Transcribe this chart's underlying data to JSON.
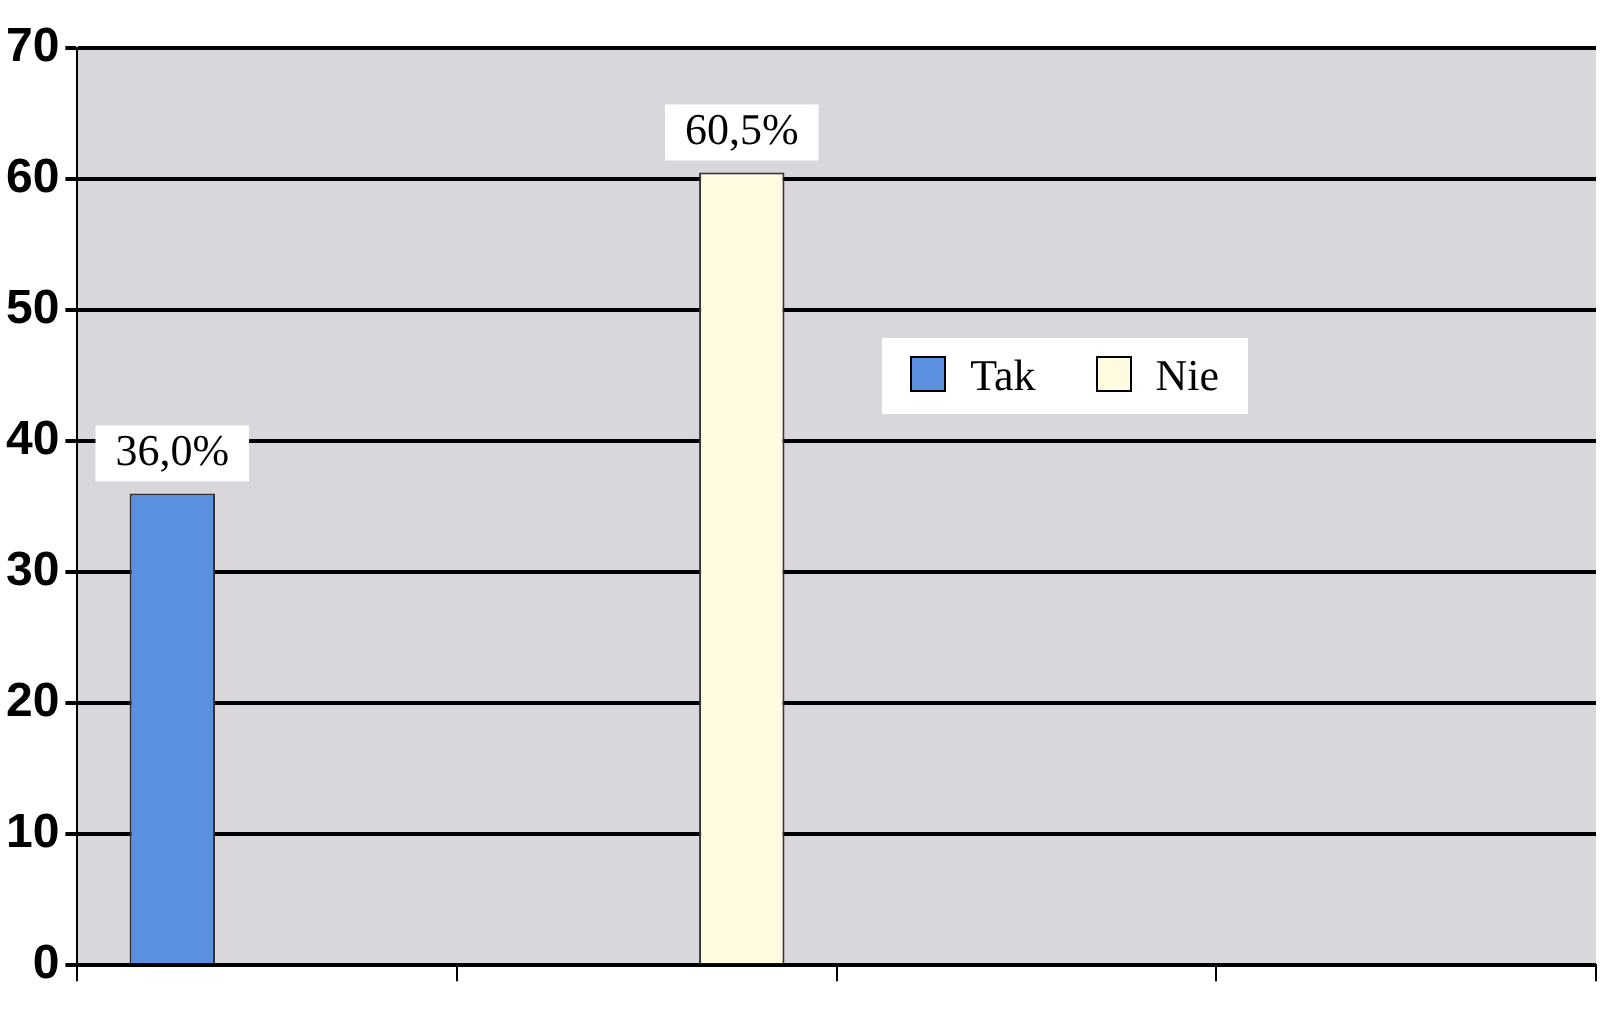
{
  "chart_data": {
    "type": "bar",
    "categories": [
      null,
      null,
      null,
      null
    ],
    "series": [
      {
        "name": "Tak",
        "color": "#5b8fe0",
        "values": [
          36.0,
          null,
          null,
          null
        ],
        "value_labels": [
          "36,0%",
          null,
          null,
          null
        ]
      },
      {
        "name": "Nie",
        "color": "#fffbe0",
        "values": [
          null,
          60.5,
          null,
          null
        ],
        "value_labels": [
          null,
          "60,5%",
          null,
          null
        ]
      }
    ],
    "ylim": [
      0,
      70
    ],
    "yticks": [
      0,
      10,
      20,
      30,
      40,
      50,
      60,
      70
    ],
    "grid": "y",
    "legend": "top right"
  }
}
